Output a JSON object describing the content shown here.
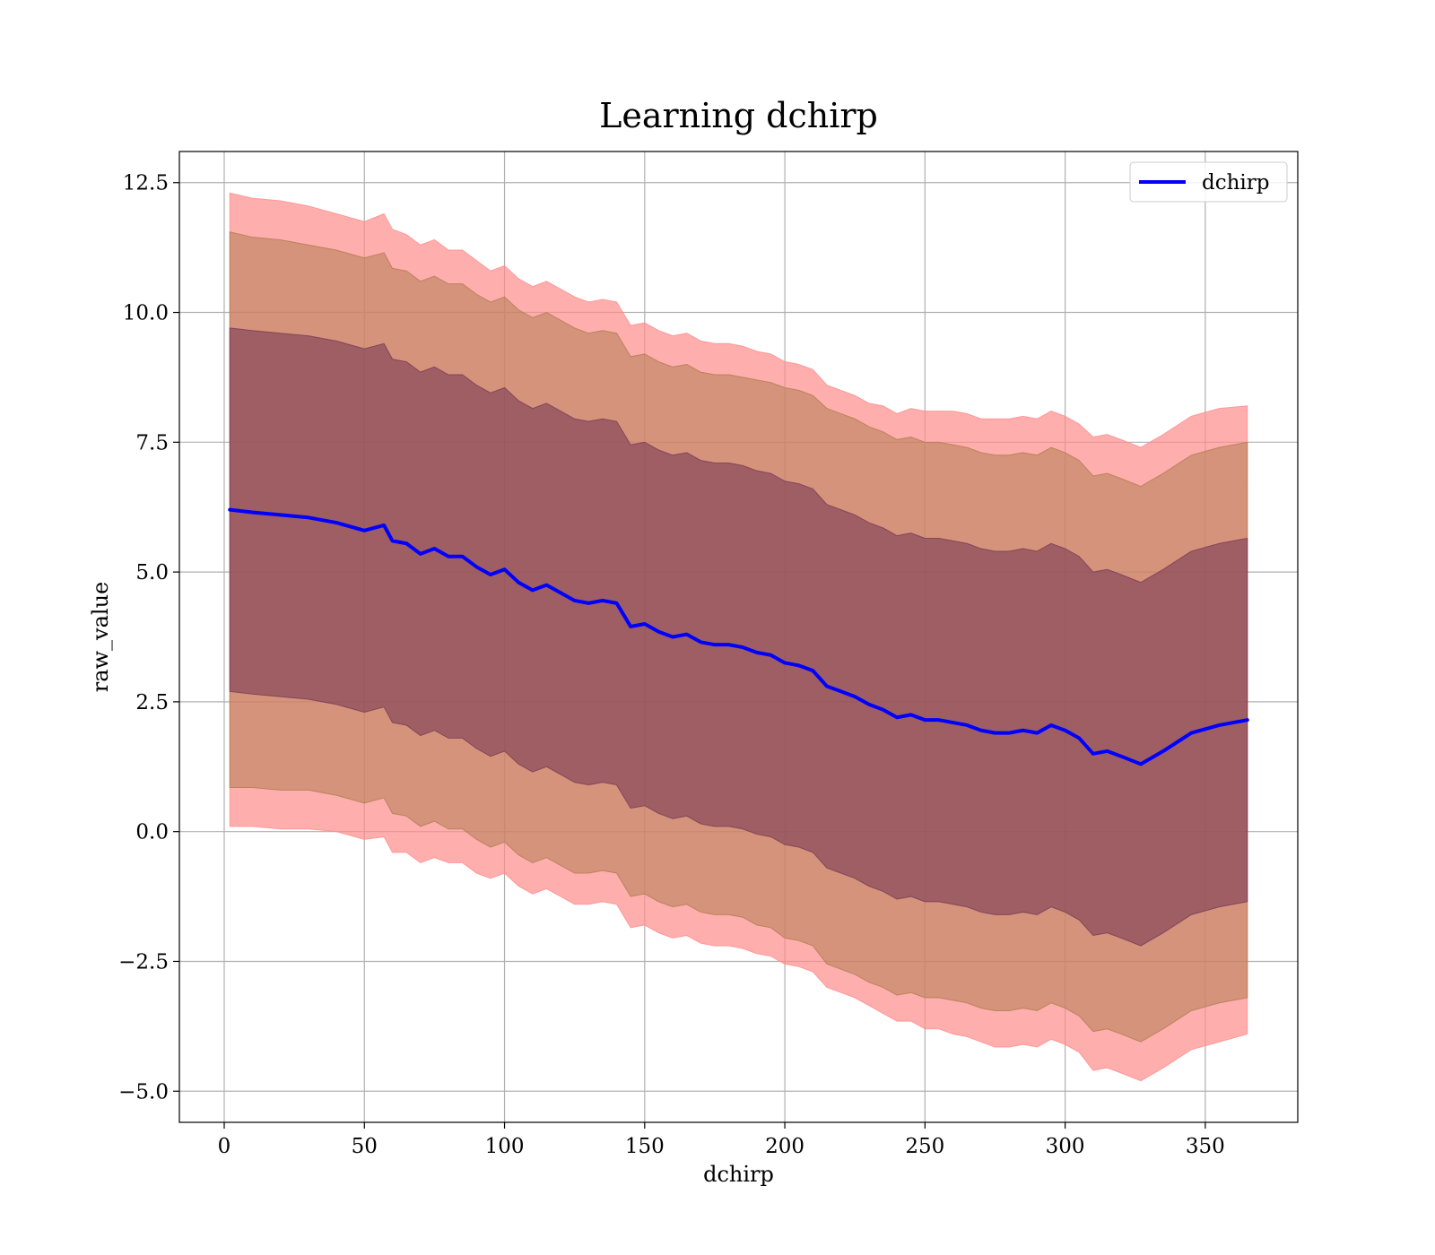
{
  "chart_data": {
    "type": "area",
    "title": "Learning dchirp",
    "xlabel": "dchirp",
    "ylabel": "raw_value",
    "xlim": [
      -16,
      383
    ],
    "ylim": [
      -5.6,
      13.1
    ],
    "x_ticks": [
      0,
      50,
      100,
      150,
      200,
      250,
      300,
      350
    ],
    "y_ticks": [
      -5.0,
      -2.5,
      0.0,
      2.5,
      5.0,
      7.5,
      10.0,
      12.5
    ],
    "grid": true,
    "legend": {
      "position": "top-right",
      "entries": [
        "dchirp"
      ]
    },
    "x": [
      2,
      10,
      20,
      30,
      40,
      50,
      57,
      60,
      65,
      70,
      75,
      80,
      85,
      90,
      95,
      100,
      105,
      110,
      115,
      120,
      125,
      130,
      135,
      140,
      145,
      150,
      155,
      160,
      165,
      170,
      175,
      180,
      185,
      190,
      195,
      200,
      205,
      210,
      215,
      220,
      225,
      230,
      235,
      240,
      245,
      250,
      255,
      260,
      265,
      270,
      275,
      280,
      285,
      290,
      295,
      300,
      305,
      310,
      315,
      320,
      327,
      335,
      345,
      355,
      365
    ],
    "series": [
      {
        "name": "dchirp",
        "color": "#0000ff",
        "values": [
          6.2,
          6.15,
          6.1,
          6.05,
          5.95,
          5.8,
          5.9,
          5.6,
          5.55,
          5.35,
          5.45,
          5.3,
          5.3,
          5.1,
          4.95,
          5.05,
          4.8,
          4.65,
          4.75,
          4.6,
          4.45,
          4.4,
          4.45,
          4.4,
          3.95,
          4.0,
          3.85,
          3.75,
          3.8,
          3.65,
          3.6,
          3.6,
          3.55,
          3.45,
          3.4,
          3.25,
          3.2,
          3.1,
          2.8,
          2.7,
          2.6,
          2.45,
          2.35,
          2.2,
          2.25,
          2.15,
          2.15,
          2.1,
          2.05,
          1.95,
          1.9,
          1.9,
          1.95,
          1.9,
          2.05,
          1.95,
          1.8,
          1.5,
          1.55,
          1.45,
          1.3,
          1.55,
          1.9,
          2.05,
          2.15
        ]
      }
    ],
    "bands": [
      {
        "name": "outer",
        "color": "#ff8c8c",
        "opacity": 0.7,
        "half_width": [
          6.1,
          6.05,
          6.05,
          6.0,
          5.95,
          5.95,
          6.0,
          6.0,
          5.95,
          5.95,
          5.95,
          5.9,
          5.9,
          5.9,
          5.85,
          5.85,
          5.85,
          5.85,
          5.85,
          5.85,
          5.85,
          5.8,
          5.8,
          5.8,
          5.8,
          5.8,
          5.8,
          5.8,
          5.8,
          5.8,
          5.8,
          5.8,
          5.8,
          5.8,
          5.8,
          5.8,
          5.8,
          5.8,
          5.8,
          5.8,
          5.8,
          5.8,
          5.85,
          5.85,
          5.9,
          5.95,
          5.95,
          6.0,
          6.0,
          6.0,
          6.05,
          6.05,
          6.05,
          6.05,
          6.05,
          6.05,
          6.05,
          6.1,
          6.1,
          6.1,
          6.1,
          6.1,
          6.1,
          6.1,
          6.05
        ]
      },
      {
        "name": "middle",
        "color": "#b07d50",
        "opacity": 0.55,
        "half_width": [
          5.35,
          5.3,
          5.3,
          5.25,
          5.25,
          5.25,
          5.25,
          5.25,
          5.25,
          5.25,
          5.25,
          5.25,
          5.25,
          5.25,
          5.25,
          5.25,
          5.25,
          5.25,
          5.25,
          5.25,
          5.25,
          5.2,
          5.2,
          5.2,
          5.2,
          5.2,
          5.2,
          5.2,
          5.2,
          5.2,
          5.2,
          5.2,
          5.2,
          5.25,
          5.25,
          5.3,
          5.3,
          5.3,
          5.35,
          5.35,
          5.35,
          5.35,
          5.35,
          5.35,
          5.35,
          5.35,
          5.35,
          5.35,
          5.35,
          5.35,
          5.35,
          5.35,
          5.35,
          5.35,
          5.35,
          5.35,
          5.35,
          5.35,
          5.35,
          5.35,
          5.35,
          5.35,
          5.35,
          5.35,
          5.35
        ]
      },
      {
        "name": "inner",
        "color": "#7a3a55",
        "opacity": 0.6,
        "half_width": [
          3.5,
          3.5,
          3.5,
          3.5,
          3.5,
          3.5,
          3.5,
          3.5,
          3.5,
          3.5,
          3.5,
          3.5,
          3.5,
          3.5,
          3.5,
          3.5,
          3.5,
          3.5,
          3.5,
          3.5,
          3.5,
          3.5,
          3.5,
          3.5,
          3.5,
          3.5,
          3.5,
          3.5,
          3.5,
          3.5,
          3.5,
          3.5,
          3.5,
          3.5,
          3.5,
          3.5,
          3.5,
          3.5,
          3.5,
          3.5,
          3.5,
          3.5,
          3.5,
          3.5,
          3.5,
          3.5,
          3.5,
          3.5,
          3.5,
          3.5,
          3.5,
          3.5,
          3.5,
          3.5,
          3.5,
          3.5,
          3.5,
          3.5,
          3.5,
          3.5,
          3.5,
          3.5,
          3.5,
          3.5,
          3.5
        ]
      }
    ]
  }
}
